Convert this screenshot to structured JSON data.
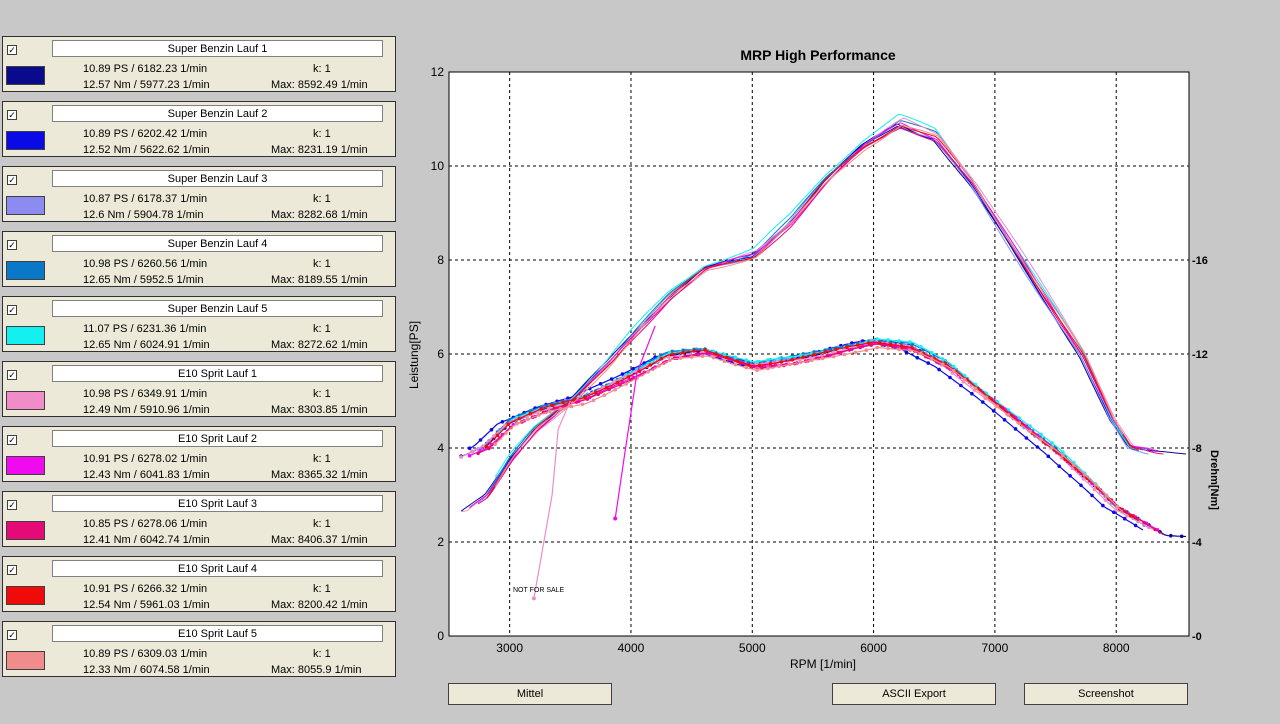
{
  "runs": [
    {
      "name": "Super Benzin Lauf 1",
      "color": "#0a0a8c",
      "ps": "10.89 PS / 6182.23 1/min",
      "nm": "12.57 Nm / 5977.23 1/min",
      "k": "k: 1",
      "max": "Max: 8592.49 1/min"
    },
    {
      "name": "Super Benzin Lauf 2",
      "color": "#0a0ae6",
      "ps": "10.89 PS / 6202.42 1/min",
      "nm": "12.52 Nm / 5622.62 1/min",
      "k": "k: 1",
      "max": "Max: 8231.19 1/min"
    },
    {
      "name": "Super Benzin Lauf 3",
      "color": "#8c8cf0",
      "ps": "10.87 PS / 6178.37 1/min",
      "nm": "12.6 Nm / 5904.78 1/min",
      "k": "k: 1",
      "max": "Max: 8282.68 1/min"
    },
    {
      "name": "Super Benzin Lauf 4",
      "color": "#0a78c8",
      "ps": "10.98 PS / 6260.56 1/min",
      "nm": "12.65 Nm / 5952.5 1/min",
      "k": "k: 1",
      "max": "Max: 8189.55 1/min"
    },
    {
      "name": "Super Benzin Lauf 5",
      "color": "#14f0f0",
      "ps": "11.07 PS / 6231.36 1/min",
      "nm": "12.65 Nm / 6024.91 1/min",
      "k": "k: 1",
      "max": "Max: 8272.62 1/min"
    },
    {
      "name": "E10 Sprit Lauf 1",
      "color": "#f08cc8",
      "ps": "10.98 PS / 6349.91 1/min",
      "nm": "12.49 Nm / 5910.96 1/min",
      "k": "k: 1",
      "max": "Max: 8303.85 1/min"
    },
    {
      "name": "E10 Sprit Lauf 2",
      "color": "#f00af0",
      "ps": "10.91 PS / 6278.02 1/min",
      "nm": "12.43 Nm / 6041.83 1/min",
      "k": "k: 1",
      "max": "Max: 8365.32 1/min"
    },
    {
      "name": "E10 Sprit Lauf 3",
      "color": "#e60a78",
      "ps": "10.85 PS / 6278.06 1/min",
      "nm": "12.41 Nm / 6042.74 1/min",
      "k": "k: 1",
      "max": "Max: 8406.37 1/min"
    },
    {
      "name": "E10 Sprit Lauf 4",
      "color": "#f00a0a",
      "ps": "10.91 PS / 6266.32 1/min",
      "nm": "12.54 Nm / 5961.03 1/min",
      "k": "k: 1",
      "max": "Max: 8200.42 1/min"
    },
    {
      "name": "E10 Sprit Lauf 5",
      "color": "#f08c8c",
      "ps": "10.89 PS / 6309.03 1/min",
      "nm": "12.33 Nm / 6074.58 1/min",
      "k": "k: 1",
      "max": "Max: 8055.9 1/min"
    }
  ],
  "checkbox_mark": "✓",
  "buttons": {
    "mittel": "Mittel",
    "ascii": "ASCII Export",
    "screenshot": "Screenshot"
  },
  "chart_data": {
    "type": "line",
    "title": "MRP High Performance",
    "xlabel": "RPM [1/min]",
    "ylabel": "Leistung[PS]",
    "ylabel_right": "Drehm[Nm]",
    "xlim": [
      2500,
      8600
    ],
    "ylim": [
      0,
      12
    ],
    "ylim_right": [
      0,
      24
    ],
    "xticks": [
      3000,
      4000,
      5000,
      6000,
      7000,
      8000
    ],
    "yticks": [
      0,
      2,
      4,
      6,
      8,
      10,
      12
    ],
    "yticks_right": [
      0,
      4,
      8,
      12,
      16
    ],
    "grid": true,
    "annotation": "NOT FOR SALE",
    "power_base": [
      [
        2600,
        2.6
      ],
      [
        2800,
        3.0
      ],
      [
        3000,
        3.8
      ],
      [
        3200,
        4.4
      ],
      [
        3500,
        5.0
      ],
      [
        3800,
        5.8
      ],
      [
        4000,
        6.4
      ],
      [
        4300,
        7.2
      ],
      [
        4600,
        7.8
      ],
      [
        5000,
        8.1
      ],
      [
        5300,
        8.8
      ],
      [
        5600,
        9.7
      ],
      [
        5900,
        10.4
      ],
      [
        6200,
        10.9
      ],
      [
        6500,
        10.6
      ],
      [
        6800,
        9.6
      ],
      [
        7100,
        8.4
      ],
      [
        7400,
        7.2
      ],
      [
        7700,
        6.0
      ],
      [
        7950,
        4.6
      ],
      [
        8100,
        4.0
      ],
      [
        8300,
        3.9
      ]
    ],
    "torque_base": [
      [
        2600,
        7.5
      ],
      [
        2800,
        8.0
      ],
      [
        3000,
        9.0
      ],
      [
        3300,
        9.6
      ],
      [
        3600,
        10.0
      ],
      [
        4000,
        11.0
      ],
      [
        4300,
        11.8
      ],
      [
        4600,
        12.0
      ],
      [
        5000,
        11.4
      ],
      [
        5300,
        11.6
      ],
      [
        5600,
        11.9
      ],
      [
        6000,
        12.4
      ],
      [
        6300,
        12.2
      ],
      [
        6600,
        11.4
      ],
      [
        6900,
        10.2
      ],
      [
        7200,
        9.0
      ],
      [
        7500,
        7.8
      ],
      [
        7800,
        6.4
      ],
      [
        8000,
        5.4
      ],
      [
        8200,
        4.8
      ],
      [
        8400,
        4.2
      ]
    ],
    "power_peak_rpm": [
      6182.23,
      6202.42,
      6178.37,
      6260.56,
      6231.36,
      6349.91,
      6278.02,
      6278.06,
      6266.32,
      6309.03
    ],
    "power_peak_ps": [
      10.89,
      10.89,
      10.87,
      10.98,
      11.07,
      10.98,
      10.91,
      10.85,
      10.91,
      10.89
    ],
    "torque_peak_rpm": [
      5977.23,
      5622.62,
      5904.78,
      5952.5,
      6024.91,
      5910.96,
      6041.83,
      6042.74,
      5961.03,
      6074.58
    ],
    "torque_peak_nm": [
      12.57,
      12.52,
      12.6,
      12.65,
      12.65,
      12.49,
      12.43,
      12.41,
      12.54,
      12.33
    ],
    "run_max_rpm": [
      8592.49,
      8231.19,
      8282.68,
      8189.55,
      8272.62,
      8303.85,
      8365.32,
      8406.37,
      8200.42,
      8055.9
    ],
    "spikes": [
      {
        "run": 5,
        "points": [
          [
            3200,
            0.8
          ],
          [
            3350,
            3.0
          ],
          [
            3400,
            4.4
          ],
          [
            3500,
            5.0
          ]
        ]
      },
      {
        "run": 6,
        "points": [
          [
            3870,
            2.5
          ],
          [
            3950,
            3.9
          ],
          [
            4050,
            5.6
          ],
          [
            4200,
            6.6
          ]
        ]
      }
    ]
  }
}
